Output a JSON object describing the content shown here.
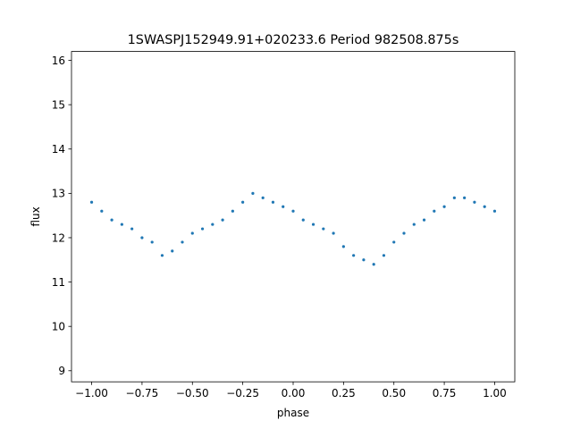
{
  "chart_data": {
    "type": "scatter",
    "title": "1SWASPJ152949.91+020233.6 Period 982508.875s",
    "xlabel": "phase",
    "ylabel": "flux",
    "xlim": [
      -1.1,
      1.1
    ],
    "ylim": [
      8.75,
      16.2
    ],
    "x_ticks": [
      -1.0,
      -0.75,
      -0.5,
      -0.25,
      0.0,
      0.25,
      0.5,
      0.75,
      1.0
    ],
    "x_tick_labels": [
      "−1.00",
      "−0.75",
      "−0.50",
      "−0.25",
      "0.00",
      "0.25",
      "0.50",
      "0.75",
      "1.00"
    ],
    "y_ticks": [
      9,
      10,
      11,
      12,
      13,
      14,
      15,
      16
    ],
    "y_tick_labels": [
      "9",
      "10",
      "11",
      "12",
      "13",
      "14",
      "15",
      "16"
    ],
    "grid": false,
    "legend": "none",
    "marker_color": "#1f77b4",
    "series": [
      {
        "x": [
          -1.0,
          -0.95,
          -0.9,
          -0.85,
          -0.8,
          -0.75,
          -0.7,
          -0.65,
          -0.6,
          -0.55,
          -0.5,
          -0.45,
          -0.4,
          -0.35,
          -0.3,
          -0.25,
          -0.2,
          -0.15,
          -0.1,
          -0.05,
          0.0,
          0.05,
          0.1,
          0.15,
          0.2,
          0.25,
          0.3,
          0.35,
          0.4,
          0.45,
          0.5,
          0.55,
          0.6,
          0.65,
          0.7,
          0.75,
          0.8,
          0.85,
          0.9,
          0.95,
          1.0
        ],
        "y": [
          12.8,
          12.6,
          12.4,
          12.3,
          12.2,
          12.0,
          11.9,
          11.6,
          11.7,
          11.9,
          12.1,
          12.2,
          12.3,
          12.4,
          12.6,
          12.8,
          13.0,
          12.9,
          12.8,
          12.7,
          12.6,
          12.4,
          12.3,
          12.2,
          12.1,
          11.8,
          11.6,
          11.5,
          11.4,
          11.6,
          11.9,
          12.1,
          12.3,
          12.4,
          12.6,
          12.7,
          12.9,
          12.9,
          12.8,
          12.7,
          12.6
        ]
      }
    ]
  }
}
